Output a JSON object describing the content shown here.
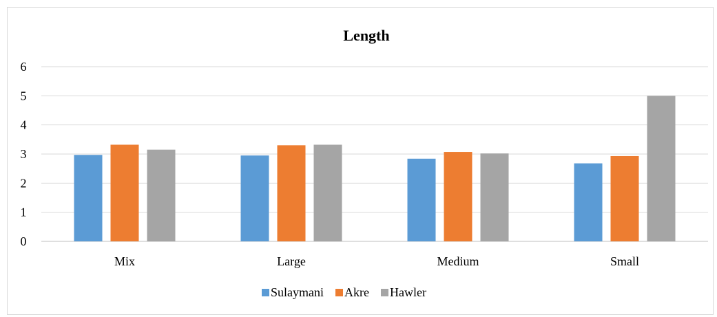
{
  "chart_data": {
    "type": "bar",
    "title": "Length",
    "xlabel": "",
    "ylabel": "",
    "categories": [
      "Mix",
      "Large",
      "Medium",
      "Small"
    ],
    "series": [
      {
        "name": "Sulaymani",
        "color": "#5b9bd5",
        "values": [
          2.97,
          2.95,
          2.84,
          2.68
        ]
      },
      {
        "name": "Akre",
        "color": "#ed7d31",
        "values": [
          3.32,
          3.3,
          3.07,
          2.93
        ]
      },
      {
        "name": "Hawler",
        "color": "#a5a5a5",
        "values": [
          3.15,
          3.32,
          3.02,
          5.0
        ]
      }
    ],
    "ylim": [
      0,
      6
    ],
    "yticks": [
      "0",
      "1",
      "2",
      "3",
      "4",
      "5",
      "6"
    ],
    "grid": true,
    "legend_position": "bottom"
  }
}
